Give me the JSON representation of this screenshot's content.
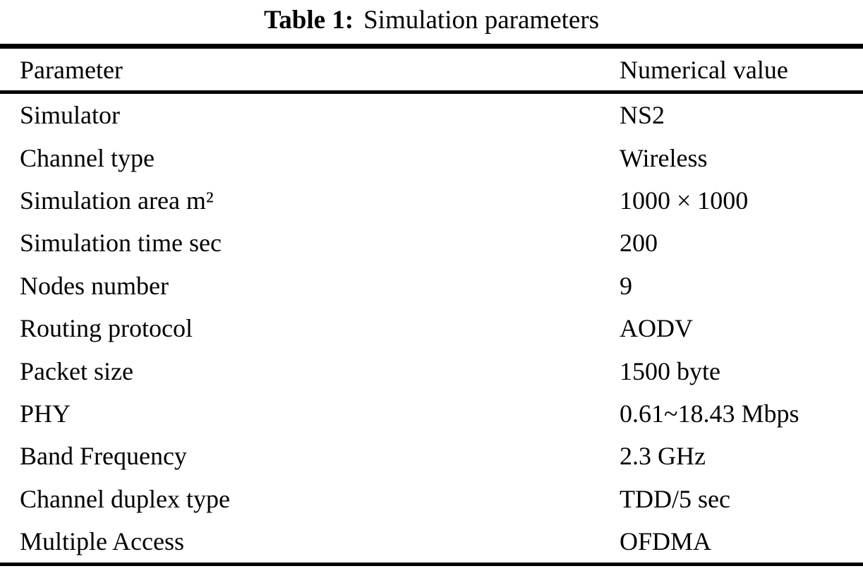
{
  "caption": {
    "label": "Table 1:",
    "title": "Simulation parameters"
  },
  "table": {
    "headers": {
      "parameter": "Parameter",
      "value": "Numerical value"
    },
    "rows": [
      {
        "parameter": "Simulator",
        "value": "NS2"
      },
      {
        "parameter": "Channel type",
        "value": "Wireless"
      },
      {
        "parameter": "Simulation area m²",
        "value": "1000 × 1000"
      },
      {
        "parameter": "Simulation time sec",
        "value": "200"
      },
      {
        "parameter": "Nodes number",
        "value": "9"
      },
      {
        "parameter": "Routing protocol",
        "value": "AODV"
      },
      {
        "parameter": "Packet size",
        "value": "1500 byte"
      },
      {
        "parameter": "PHY",
        "value": "0.61~18.43 Mbps"
      },
      {
        "parameter": "Band Frequency",
        "value": "2.3 GHz"
      },
      {
        "parameter": "Channel duplex type",
        "value": "TDD/5 sec"
      },
      {
        "parameter": "Multiple Access",
        "value": "OFDMA"
      }
    ]
  },
  "colors": {
    "text": "#000000",
    "background": "#ffffff",
    "rule": "#000000"
  }
}
